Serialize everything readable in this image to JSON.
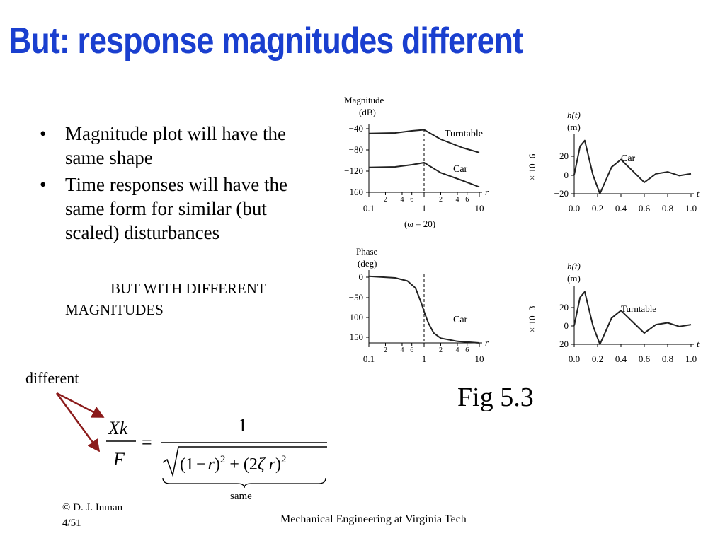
{
  "slide": {
    "title": "But: response magnitudes different",
    "bullets": [
      "Magnitude plot will have the same shape",
      "Time responses will have the same form for similar (but scaled) disturbances"
    ],
    "emphasis_line1": "BUT WITH DIFFERENT",
    "emphasis_line2": "MAGNITUDES",
    "fig_caption": "Fig 5.3",
    "different_label": "different",
    "same_label": "same",
    "footer_copyright": "© D. J. Inman",
    "footer_page": "4/51",
    "footer_center": "Mechanical Engineering at Virginia Tech",
    "colors": {
      "title": "#1a3fcf",
      "arrow": "#8b1a1a"
    }
  },
  "formula": {
    "lhs_num": "Xk",
    "lhs_den": "F",
    "rhs_num": "1",
    "equals": "="
  },
  "chart_data": [
    {
      "type": "line",
      "ylabel": "Magnitude (dB)",
      "xlabel": "r",
      "xscale": "log",
      "xlim": [
        0.1,
        10
      ],
      "ylim": [
        -160,
        -40
      ],
      "xticks": [
        "0.1",
        "1",
        "10"
      ],
      "minor_ticks": [
        "2",
        "4",
        "6",
        "2",
        "4",
        "6"
      ],
      "yticks": [
        "−40",
        "−80",
        "−120",
        "−160"
      ],
      "note": "(ω = 20)",
      "series": [
        {
          "name": "Turntable",
          "x": [
            0.1,
            0.3,
            0.6,
            1.0,
            2.0,
            5.0,
            10.0
          ],
          "y": [
            -49,
            -48,
            -44,
            -42,
            -60,
            -76,
            -85
          ]
        },
        {
          "name": "Car",
          "x": [
            0.1,
            0.3,
            0.6,
            1.0,
            2.0,
            5.0,
            10.0
          ],
          "y": [
            -113,
            -112,
            -108,
            -104,
            -123,
            -138,
            -150
          ]
        }
      ]
    },
    {
      "type": "line",
      "ylabel": "Phase (deg)",
      "xlabel": "r",
      "xscale": "log",
      "xlim": [
        0.1,
        10
      ],
      "ylim": [
        -170,
        5
      ],
      "xticks": [
        "0.1",
        "1",
        "10"
      ],
      "minor_ticks": [
        "2",
        "4",
        "6",
        "2",
        "4",
        "6"
      ],
      "yticks": [
        "0",
        "−50",
        "−100",
        "−150"
      ],
      "series": [
        {
          "name": "Car",
          "x": [
            0.1,
            0.3,
            0.5,
            0.7,
            0.9,
            1.0,
            1.2,
            1.5,
            2.0,
            4.0,
            10.0
          ],
          "y": [
            0,
            -4,
            -12,
            -30,
            -70,
            -90,
            -120,
            -145,
            -158,
            -166,
            -170
          ]
        }
      ]
    },
    {
      "type": "line",
      "ylabel": "h(t) (m)",
      "scale": "× 10−6",
      "xlabel": "t",
      "xlim": [
        0,
        1
      ],
      "ylim": [
        -20,
        38
      ],
      "xticks": [
        "0.0",
        "0.2",
        "0.4",
        "0.6",
        "0.8",
        "1.0"
      ],
      "yticks": [
        "20",
        "0",
        "−20"
      ],
      "series": [
        {
          "name": "Car",
          "x": [
            0,
            0.05,
            0.09,
            0.16,
            0.22,
            0.32,
            0.4,
            0.5,
            0.6,
            0.7,
            0.8,
            0.9,
            1.0
          ],
          "y": [
            0,
            30,
            36,
            0,
            -20,
            8,
            16,
            4,
            -8,
            1,
            3,
            -1,
            1
          ]
        }
      ]
    },
    {
      "type": "line",
      "ylabel": "h(t) (m)",
      "scale": "× 10−3",
      "xlabel": "t",
      "xlim": [
        0,
        1
      ],
      "ylim": [
        -20,
        38
      ],
      "xticks": [
        "0.0",
        "0.2",
        "0.4",
        "0.6",
        "0.8",
        "1.0"
      ],
      "yticks": [
        "20",
        "0",
        "−20"
      ],
      "series": [
        {
          "name": "Turntable",
          "x": [
            0,
            0.05,
            0.09,
            0.16,
            0.22,
            0.32,
            0.4,
            0.5,
            0.6,
            0.7,
            0.8,
            0.9,
            1.0
          ],
          "y": [
            0,
            30,
            36,
            0,
            -20,
            8,
            16,
            4,
            -8,
            1,
            3,
            -1,
            1
          ]
        }
      ]
    }
  ]
}
